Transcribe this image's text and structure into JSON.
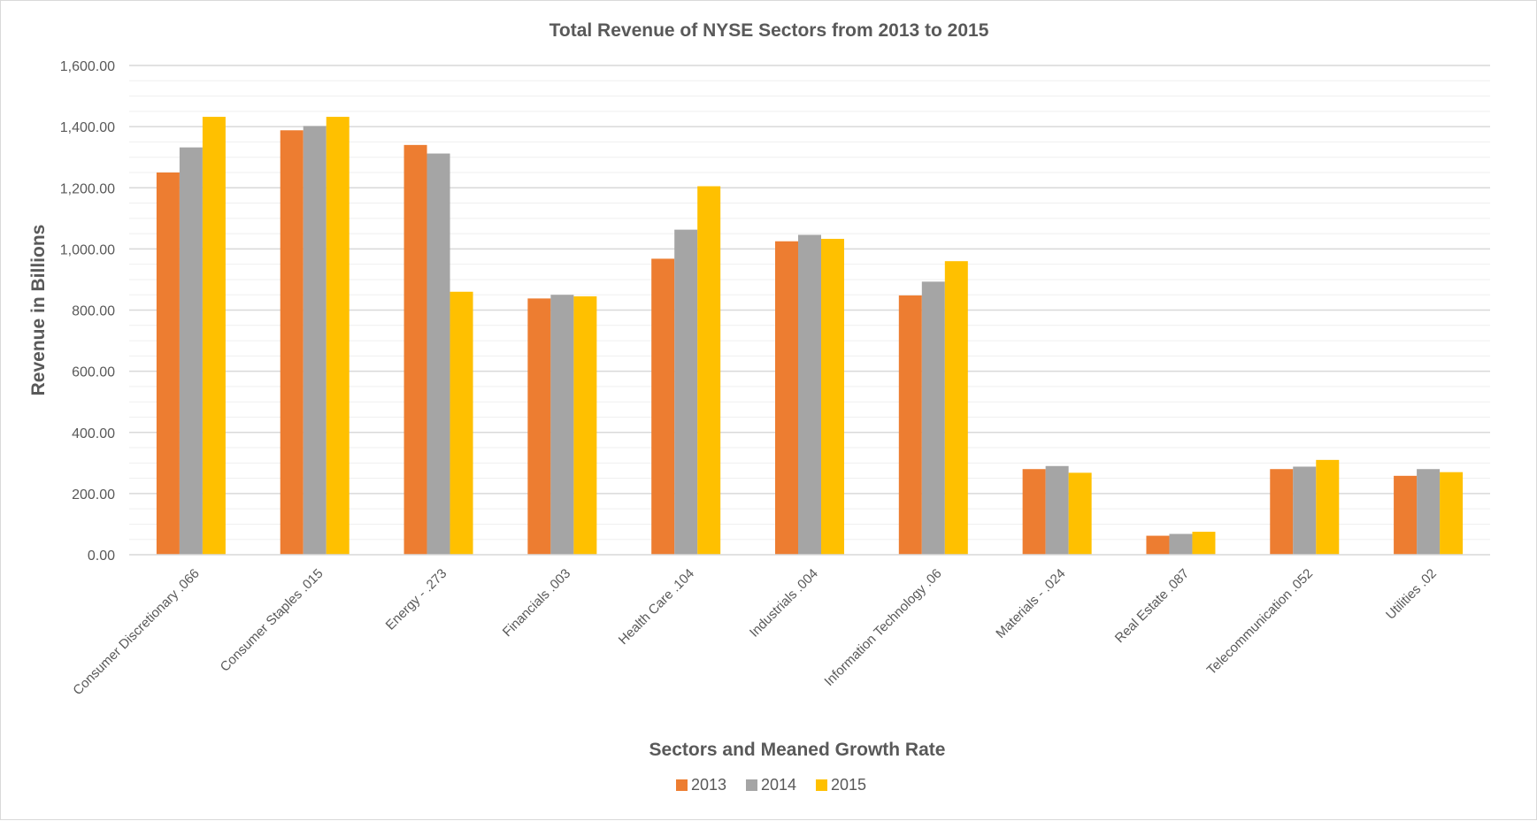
{
  "chart_data": {
    "type": "bar",
    "title": "Total Revenue of NYSE Sectors from 2013 to 2015",
    "xlabel": "Sectors and Meaned Growth Rate",
    "ylabel": "Revenue in Billions",
    "ylim": [
      0,
      1600
    ],
    "yticks": [
      "0.00",
      "200.00",
      "400.00",
      "600.00",
      "800.00",
      "1,000.00",
      "1,200.00",
      "1,400.00",
      "1,600.00"
    ],
    "grid": true,
    "legend_position": "bottom",
    "categories": [
      "Consumer Discretionary .066",
      "Consumer Staples .015",
      "Energy - .273",
      "Financials .003",
      "Health Care .104",
      "Industrials .004",
      "Information Technology .06",
      "Materials - .024",
      "Real Estate .087",
      "Telecommunication .052",
      "Utilities .02"
    ],
    "series": [
      {
        "name": "2013",
        "color": "#ed7d31",
        "values": [
          1250,
          1388,
          1340,
          838,
          968,
          1025,
          848,
          280,
          62,
          280,
          258
        ]
      },
      {
        "name": "2014",
        "color": "#a5a5a5",
        "values": [
          1332,
          1402,
          1312,
          850,
          1063,
          1046,
          893,
          290,
          68,
          288,
          280
        ]
      },
      {
        "name": "2015",
        "color": "#ffc000",
        "values": [
          1432,
          1432,
          860,
          845,
          1205,
          1033,
          960,
          268,
          75,
          310,
          270
        ]
      }
    ]
  }
}
